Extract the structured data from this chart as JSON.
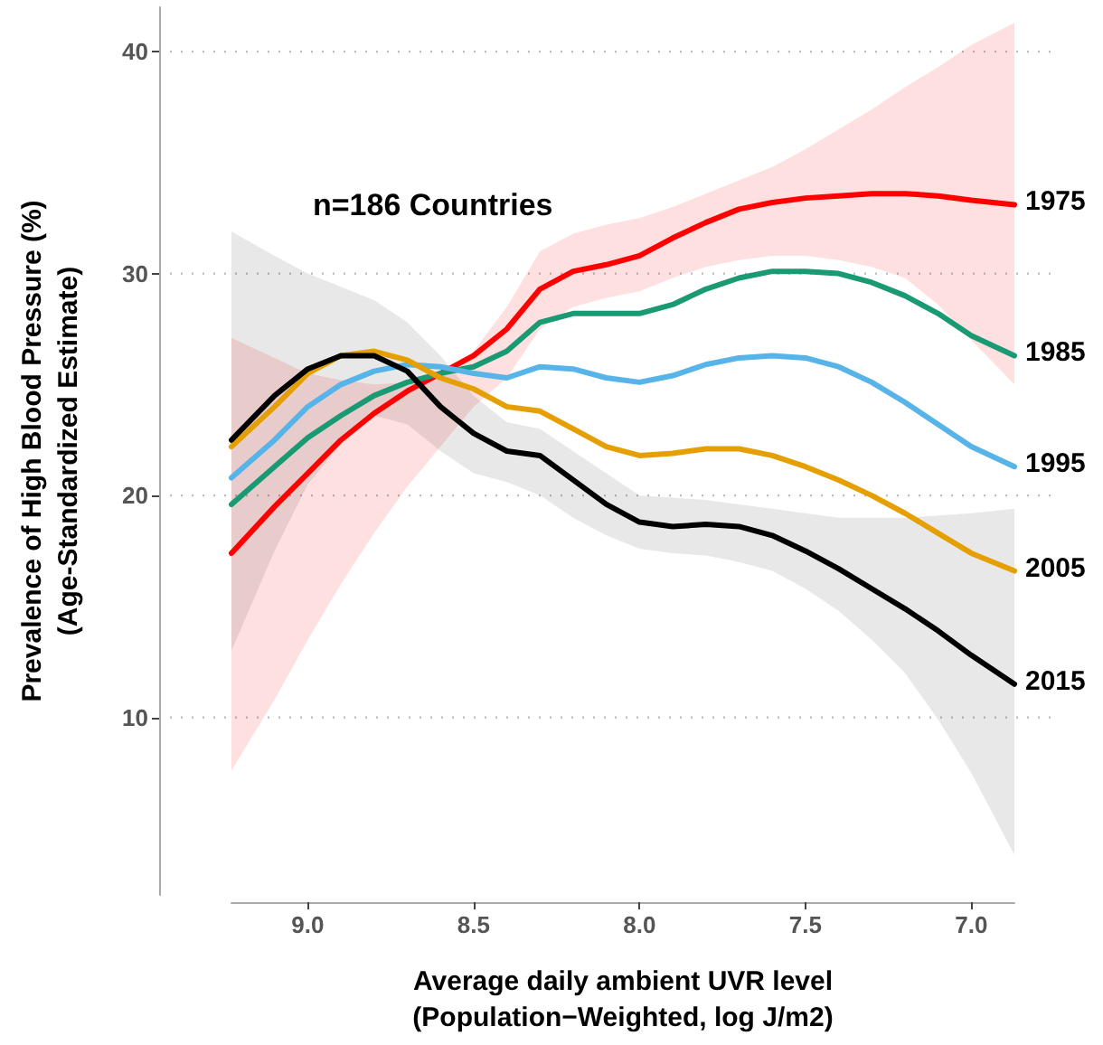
{
  "chart_data": {
    "type": "line",
    "xlabel": "Average daily ambient UVR level\n(Population−Weighted, log J/m2)",
    "ylabel": "Prevalence of High Blood Pressure (%)\n(Age-Standardized Estimate)",
    "annotations": [
      "n=186 Countries"
    ],
    "x": [
      9.23,
      9.1,
      9.0,
      8.9,
      8.8,
      8.7,
      8.6,
      8.5,
      8.4,
      8.3,
      8.2,
      8.1,
      8.0,
      7.9,
      7.8,
      7.7,
      7.6,
      7.5,
      7.4,
      7.3,
      7.2,
      7.1,
      7.0,
      6.87
    ],
    "xlim": [
      9.23,
      6.87
    ],
    "xticks": [
      {
        "value": 9,
        "label": "9.0"
      },
      8.5,
      {
        "value": 8,
        "label": "8.0"
      },
      7.5,
      {
        "value": 7,
        "label": "7.0"
      }
    ],
    "ylim": [
      2,
      42
    ],
    "yticks": [
      10,
      20,
      30,
      40
    ],
    "grid": "y",
    "legend": false,
    "marker": "none",
    "line_style": "solid",
    "series": [
      {
        "name": "1975",
        "color": "#ff0000",
        "values": [
          17.4,
          19.5,
          21.0,
          22.5,
          23.7,
          24.7,
          25.5,
          26.3,
          27.5,
          29.3,
          30.1,
          30.4,
          30.8,
          31.6,
          32.3,
          32.9,
          33.2,
          33.4,
          33.5,
          33.6,
          33.6,
          33.5,
          33.3,
          33.1
        ],
        "lower": [
          7.6,
          10.8,
          13.5,
          16.0,
          18.3,
          20.4,
          22.2,
          24.0,
          25.3,
          27.5,
          28.5,
          28.9,
          29.2,
          29.8,
          30.3,
          30.6,
          30.8,
          30.8,
          30.6,
          30.3,
          29.8,
          28.6,
          27.0,
          25.0
        ],
        "upper": [
          27.1,
          26.2,
          25.5,
          25.2,
          25.0,
          25.1,
          25.5,
          26.5,
          28.5,
          31.0,
          31.8,
          32.2,
          32.5,
          33.0,
          33.6,
          34.2,
          34.8,
          35.6,
          36.5,
          37.4,
          38.4,
          39.3,
          40.3,
          41.3
        ]
      },
      {
        "name": "1985",
        "color": "#1a9a72",
        "values": [
          19.6,
          21.3,
          22.6,
          23.6,
          24.5,
          25.1,
          25.5,
          25.8,
          26.5,
          27.8,
          28.2,
          28.2,
          28.2,
          28.6,
          29.3,
          29.8,
          30.1,
          30.1,
          30.0,
          29.6,
          29.0,
          28.2,
          27.2,
          26.3
        ]
      },
      {
        "name": "1995",
        "color": "#56b4e9",
        "values": [
          20.8,
          22.5,
          24.0,
          25.0,
          25.6,
          25.9,
          25.8,
          25.5,
          25.3,
          25.8,
          25.7,
          25.3,
          25.1,
          25.4,
          25.9,
          26.2,
          26.3,
          26.2,
          25.8,
          25.1,
          24.2,
          23.2,
          22.2,
          21.3
        ]
      },
      {
        "name": "2005",
        "color": "#e69f00",
        "values": [
          22.2,
          24.0,
          25.5,
          26.3,
          26.5,
          26.1,
          25.3,
          24.8,
          24.0,
          23.8,
          23.0,
          22.2,
          21.8,
          21.9,
          22.1,
          22.1,
          21.8,
          21.3,
          20.7,
          20.0,
          19.2,
          18.3,
          17.4,
          16.6
        ]
      },
      {
        "name": "2015",
        "color": "#000000",
        "values": [
          22.5,
          24.5,
          25.7,
          26.3,
          26.3,
          25.6,
          24.0,
          22.8,
          22.0,
          21.8,
          20.7,
          19.6,
          18.8,
          18.6,
          18.7,
          18.6,
          18.2,
          17.5,
          16.7,
          15.8,
          14.9,
          13.9,
          12.8,
          11.5
        ],
        "lower": [
          13.0,
          17.5,
          20.5,
          22.3,
          23.6,
          23.2,
          22.0,
          21.0,
          20.6,
          20.0,
          19.0,
          18.2,
          17.6,
          17.4,
          17.3,
          17.0,
          16.6,
          15.8,
          14.8,
          13.5,
          12.0,
          9.9,
          7.5,
          3.8
        ],
        "upper": [
          31.9,
          30.8,
          30.0,
          29.4,
          28.8,
          27.8,
          26.3,
          24.5,
          23.3,
          23.0,
          22.0,
          21.0,
          20.0,
          19.9,
          19.8,
          19.6,
          19.4,
          19.2,
          19.0,
          19.0,
          19.0,
          19.1,
          19.2,
          19.4
        ]
      }
    ]
  }
}
